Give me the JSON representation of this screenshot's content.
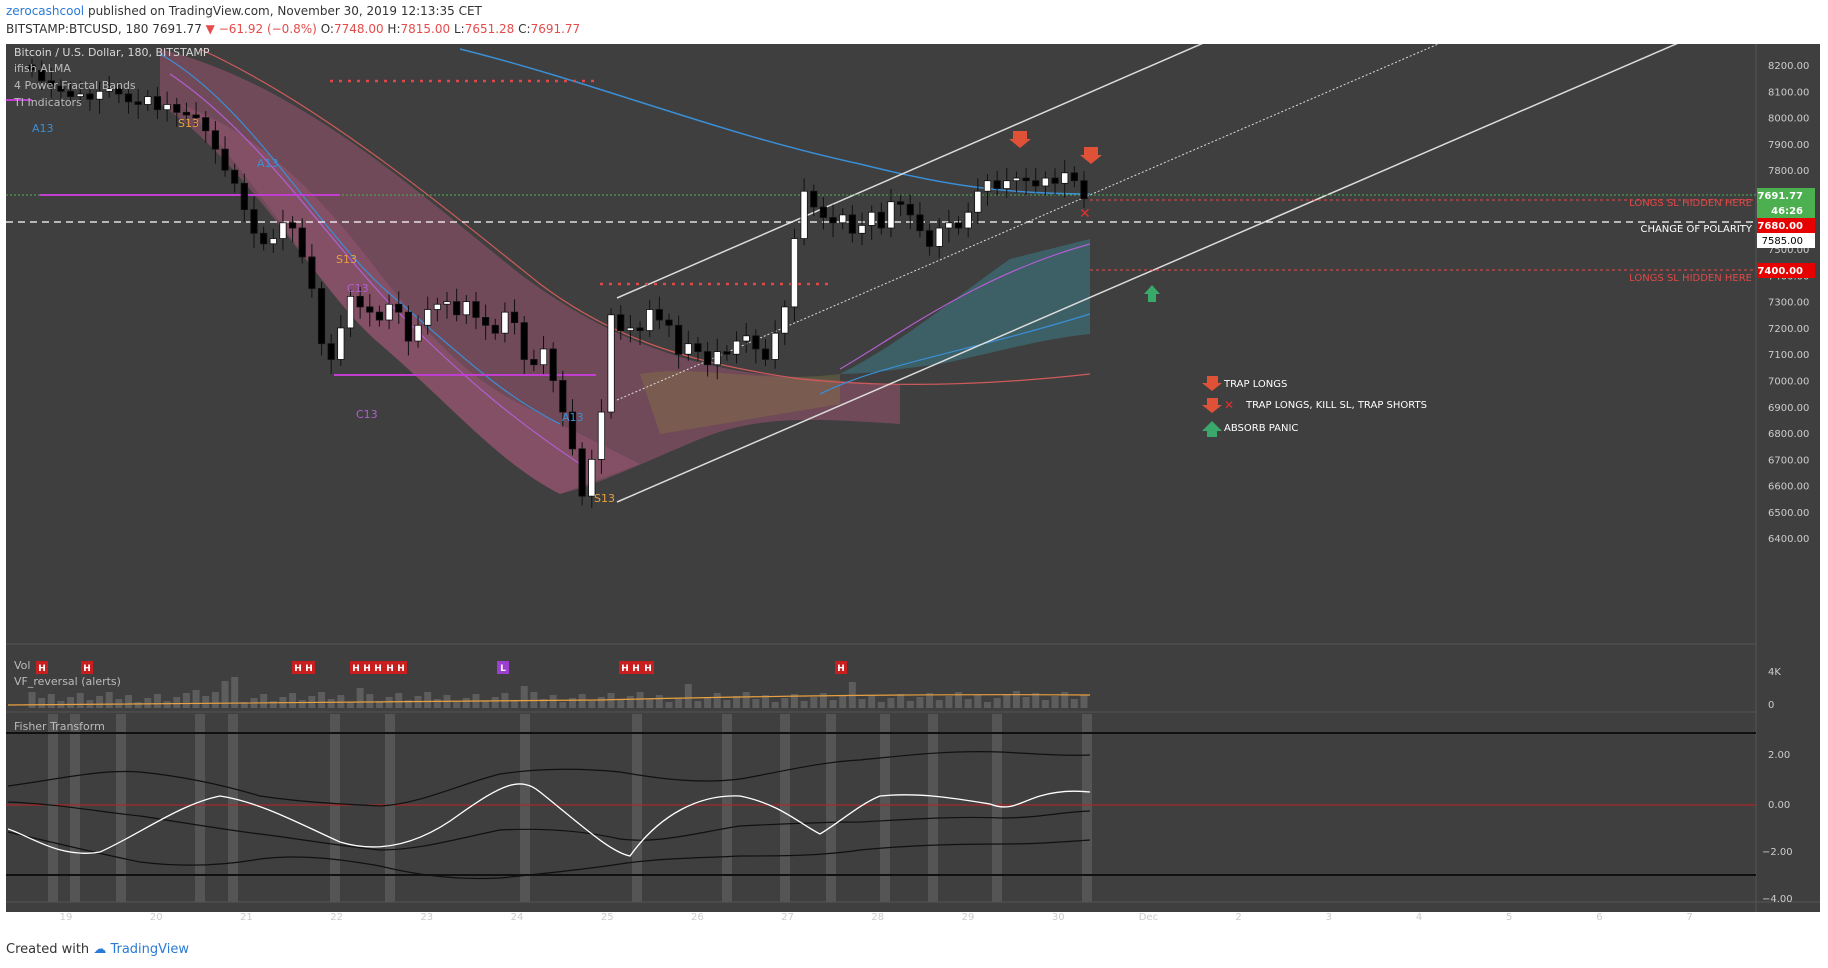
{
  "header": {
    "author": "zerocashcool",
    "published": "published on TradingView.com, November 30, 2019 12:13:35 CET",
    "symbol": "BITSTAMP:BTCUSD, 180",
    "last": "7691.77",
    "change": "−61.92 (−0.8%)",
    "ohlc": {
      "o_label": "O:",
      "o": "7748.00",
      "h_label": "H:",
      "h": "7815.00",
      "l_label": "L:",
      "l": "7651.28",
      "c_label": "C:",
      "c": "7691.77"
    }
  },
  "legend": {
    "title": "Bitcoin / U.S. Dollar, 180, BITSTAMP",
    "items": [
      "ifish ALMA",
      "4 Power Fractal Bands",
      "TI Indicators"
    ]
  },
  "annotations": {
    "longs_sl_1": "LONGS SL HIDDEN HERE",
    "change_of_polarity": "CHANGE OF POLARITY",
    "longs_sl_2": "LONGS SL HIDDEN HERE",
    "legend_trap_longs": "TRAP LONGS",
    "legend_trap_kill": "TRAP LONGS, KILL SL, TRAP SHORTS",
    "legend_absorb": "ABSORB PANIC",
    "td_labels": [
      "A13",
      "S13",
      "A13",
      "S13",
      "C13",
      "C13",
      "A13",
      "S13"
    ]
  },
  "price_tags": {
    "last": "7691.77",
    "countdown": "46:26",
    "level_red": "7680.00",
    "level_white": "7585.00",
    "level_sl": "7400.00"
  },
  "volume_pane": {
    "title": "Vol",
    "subtitle": "VF_reversal (alerts)",
    "axis": [
      "4K",
      "0"
    ],
    "h_markers": [
      "H",
      "H",
      "H",
      "H",
      "H",
      "H",
      "H",
      "H",
      "H",
      "H",
      "H",
      "H",
      "H"
    ],
    "l_marker": "L"
  },
  "fisher_pane": {
    "title": "Fisher Transform",
    "axis": [
      "2.00",
      "0.00",
      "−2.00",
      "−4.00"
    ]
  },
  "x_axis": {
    "labels": [
      "19",
      "20",
      "21",
      "22",
      "23",
      "24",
      "25",
      "26",
      "27",
      "28",
      "29",
      "30",
      "Dec",
      "2",
      "3",
      "4",
      "5",
      "6",
      "7"
    ]
  },
  "footer": {
    "created": "Created with",
    "brand": "TradingView"
  },
  "chart_data": {
    "type": "candlestick",
    "title": "Bitcoin / U.S. Dollar, 180, BITSTAMP",
    "y_axis_ticks": [
      8200,
      8100,
      8000,
      7900,
      7800,
      7700,
      7600,
      7500,
      7400,
      7300,
      7200,
      7100,
      7000,
      6900,
      6800,
      6700,
      6600,
      6500,
      6400
    ],
    "ylim": [
      6340,
      8280
    ],
    "x_day_labels": [
      "19",
      "20",
      "21",
      "22",
      "23",
      "24",
      "25",
      "26",
      "27",
      "28",
      "29",
      "30",
      "Dec",
      "2",
      "3",
      "4",
      "5",
      "6",
      "7"
    ],
    "candles_close_approx": [
      8180,
      8140,
      8120,
      8100,
      8080,
      8090,
      8070,
      8100,
      8110,
      8090,
      8060,
      8050,
      8080,
      8030,
      8050,
      8020,
      8010,
      8000,
      7950,
      7880,
      7800,
      7750,
      7650,
      7560,
      7520,
      7540,
      7600,
      7580,
      7470,
      7350,
      7140,
      7080,
      7200,
      7320,
      7280,
      7260,
      7230,
      7290,
      7260,
      7150,
      7210,
      7270,
      7290,
      7300,
      7250,
      7300,
      7240,
      7210,
      7180,
      7260,
      7220,
      7080,
      7060,
      7120,
      7000,
      6880,
      6740,
      6560,
      6700,
      6880,
      7250,
      7190,
      7200,
      7190,
      7270,
      7230,
      7210,
      7100,
      7140,
      7110,
      7060,
      7110,
      7100,
      7150,
      7170,
      7120,
      7080,
      7180,
      7280,
      7540,
      7720,
      7660,
      7620,
      7600,
      7630,
      7560,
      7590,
      7640,
      7580,
      7680,
      7670,
      7630,
      7570,
      7510,
      7580,
      7600,
      7580,
      7640,
      7720,
      7760,
      7730,
      7760,
      7770,
      7760,
      7740,
      7770,
      7750,
      7790,
      7760,
      7691.77
    ],
    "horizontal_levels": {
      "last": 7691.77,
      "change_of_polarity": 7585,
      "sl_line_1": 7680,
      "sl_line_2": 7400
    },
    "last_ohlc": {
      "o": 7748.0,
      "h": 7815.0,
      "l": 7651.28,
      "c": 7691.77
    }
  },
  "colors": {
    "background": "#3f3f3f",
    "up_candle": "#ffffff",
    "down_candle": "#000000",
    "red_tag": "#e60000",
    "green_tag": "#4caf50",
    "magenta": "#c13fd0",
    "sl_text": "#e04848"
  }
}
